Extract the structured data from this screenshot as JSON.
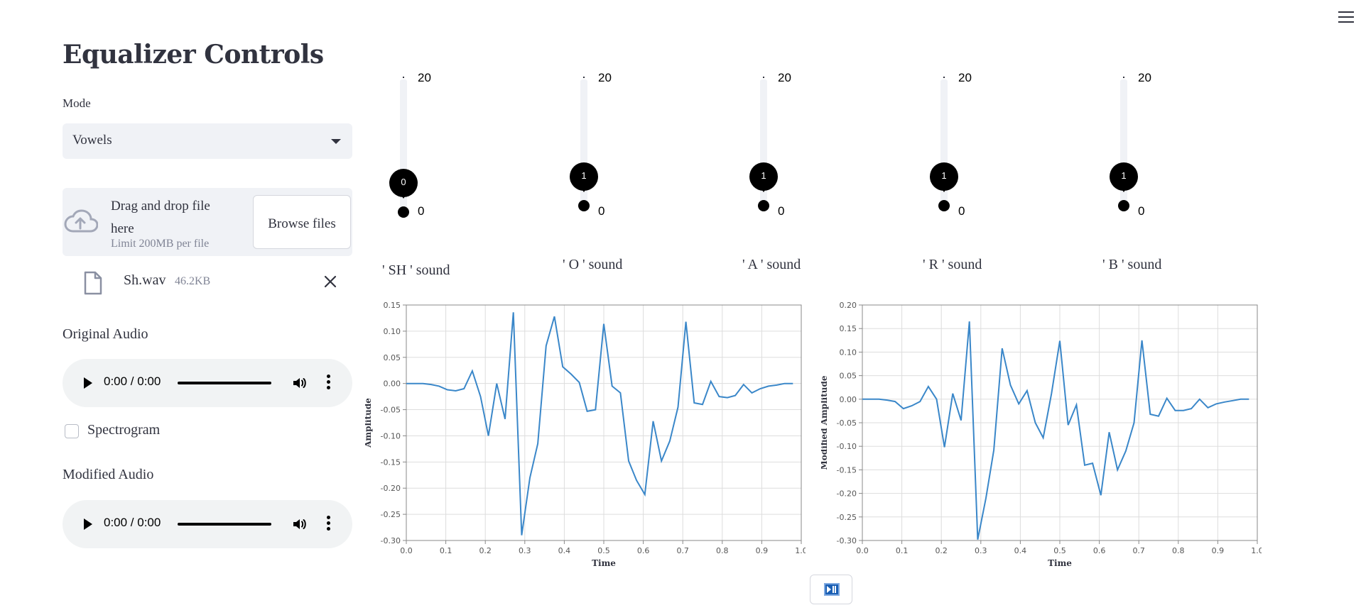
{
  "sidebar": {
    "title": "Equalizer Controls",
    "mode_label": "Mode",
    "mode_value": "Vowels",
    "uploader": {
      "drop_text": "Drag and drop file here",
      "limit_text": "Limit 200MB per file",
      "browse_label": "Browse files"
    },
    "file": {
      "name": "Sh.wav",
      "size": "46.2KB"
    },
    "original_audio_label": "Original Audio",
    "modified_audio_label": "Modified Audio",
    "audio_time": "0:00 / 0:00",
    "spectrogram_label": "Spectrogram",
    "spectrogram_checked": false
  },
  "sliders": [
    {
      "label": "' SH ' sound",
      "value": 0,
      "max": 20,
      "min": 0
    },
    {
      "label": "' O ' sound",
      "value": 1,
      "max": 20,
      "min": 0
    },
    {
      "label": "' A ' sound",
      "value": 1,
      "max": 20,
      "min": 0
    },
    {
      "label": "' R ' sound",
      "value": 1,
      "max": 20,
      "min": 0
    },
    {
      "label": "' B ' sound",
      "value": 1,
      "max": 20,
      "min": 0
    }
  ],
  "colors": {
    "line": "#3a87c9",
    "slider_fill": "#1f77b4"
  },
  "chart_data": [
    {
      "type": "line",
      "xlabel": "Time",
      "ylabel": "Amplitude",
      "xlim": [
        0,
        1.0
      ],
      "ylim": [
        -0.3,
        0.15
      ],
      "xticks": [
        "0.0",
        "0.1",
        "0.2",
        "0.3",
        "0.4",
        "0.5",
        "0.6",
        "0.7",
        "0.8",
        "0.9",
        "1.0"
      ],
      "yticks": [
        "0.15",
        "0.10",
        "0.05",
        "0.00",
        "-0.05",
        "-0.10",
        "-0.15",
        "-0.20",
        "-0.25",
        "-0.30"
      ],
      "grid": true,
      "x": [
        0.0,
        0.021,
        0.042,
        0.063,
        0.083,
        0.104,
        0.125,
        0.146,
        0.167,
        0.188,
        0.208,
        0.229,
        0.25,
        0.271,
        0.292,
        0.313,
        0.333,
        0.354,
        0.375,
        0.396,
        0.417,
        0.438,
        0.458,
        0.479,
        0.5,
        0.521,
        0.542,
        0.563,
        0.583,
        0.604,
        0.625,
        0.646,
        0.667,
        0.688,
        0.708,
        0.729,
        0.75,
        0.771,
        0.792,
        0.813,
        0.833,
        0.854,
        0.875,
        0.896,
        0.917,
        0.938,
        0.958,
        0.979
      ],
      "y": [
        0.0,
        0.0,
        0.0,
        -0.002,
        -0.005,
        -0.012,
        -0.014,
        -0.01,
        0.024,
        -0.025,
        -0.1,
        0.0,
        -0.068,
        0.136,
        -0.29,
        -0.18,
        -0.115,
        0.072,
        0.128,
        0.032,
        0.018,
        0.002,
        -0.053,
        -0.05,
        0.114,
        -0.005,
        -0.018,
        -0.148,
        -0.185,
        -0.212,
        -0.072,
        -0.148,
        -0.11,
        -0.045,
        0.118,
        -0.037,
        -0.04,
        0.004,
        -0.025,
        -0.027,
        -0.023,
        -0.002,
        -0.018,
        -0.01,
        -0.005,
        -0.003,
        0.0,
        0.0
      ]
    },
    {
      "type": "line",
      "xlabel": "Time",
      "ylabel": "Modified Amplitude",
      "xlim": [
        0,
        1.0
      ],
      "ylim": [
        -0.3,
        0.2
      ],
      "xticks": [
        "0.0",
        "0.1",
        "0.2",
        "0.3",
        "0.4",
        "0.5",
        "0.6",
        "0.7",
        "0.8",
        "0.9",
        "1.0"
      ],
      "yticks": [
        "0.20",
        "0.15",
        "0.10",
        "0.05",
        "0.00",
        "-0.05",
        "-0.10",
        "-0.15",
        "-0.20",
        "-0.25",
        "-0.30"
      ],
      "grid": true,
      "x": [
        0.0,
        0.021,
        0.042,
        0.063,
        0.083,
        0.104,
        0.125,
        0.146,
        0.167,
        0.188,
        0.208,
        0.229,
        0.25,
        0.271,
        0.292,
        0.313,
        0.333,
        0.354,
        0.375,
        0.396,
        0.417,
        0.438,
        0.458,
        0.479,
        0.5,
        0.521,
        0.542,
        0.563,
        0.583,
        0.604,
        0.625,
        0.646,
        0.667,
        0.688,
        0.708,
        0.729,
        0.75,
        0.771,
        0.792,
        0.813,
        0.833,
        0.854,
        0.875,
        0.896,
        0.917,
        0.938,
        0.958,
        0.979
      ],
      "y": [
        0.0,
        0.0,
        0.0,
        -0.002,
        -0.005,
        -0.02,
        -0.014,
        -0.005,
        0.027,
        0.0,
        -0.102,
        0.012,
        -0.045,
        0.165,
        -0.298,
        -0.21,
        -0.108,
        0.108,
        0.03,
        -0.01,
        0.018,
        -0.05,
        -0.082,
        0.012,
        0.124,
        -0.055,
        -0.012,
        -0.14,
        -0.136,
        -0.204,
        -0.07,
        -0.15,
        -0.11,
        -0.05,
        0.125,
        -0.032,
        -0.036,
        0.002,
        -0.024,
        -0.024,
        -0.02,
        0.0,
        -0.018,
        -0.01,
        -0.006,
        -0.003,
        0.0,
        0.0
      ]
    }
  ]
}
